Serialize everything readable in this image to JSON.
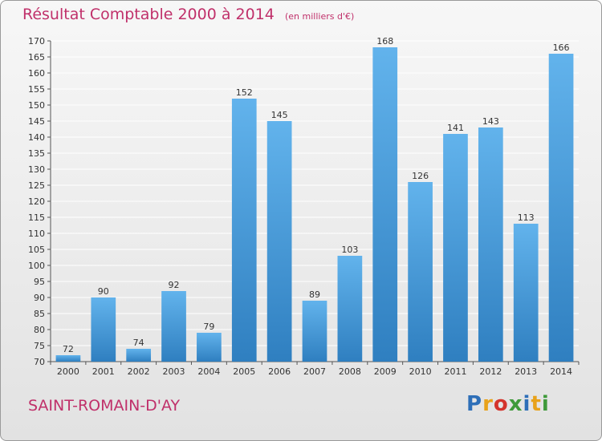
{
  "header": {
    "title": "Résultat Comptable 2000 à 2014",
    "subtitle": "(en milliers d'€)"
  },
  "footer": {
    "commune": "SAINT-ROMAIN-D'AY",
    "logo": "Proxiti"
  },
  "colors": {
    "title": "#c0306a",
    "bar_top": "#62b3ec",
    "bar_bottom": "#2f7fc0",
    "grid": "#ffffff",
    "axis": "#555555"
  },
  "chart_data": {
    "type": "bar",
    "categories": [
      "2000",
      "2001",
      "2002",
      "2003",
      "2004",
      "2005",
      "2006",
      "2007",
      "2008",
      "2009",
      "2010",
      "2011",
      "2012",
      "2013",
      "2014"
    ],
    "values": [
      72,
      90,
      74,
      92,
      79,
      152,
      145,
      89,
      103,
      168,
      126,
      141,
      143,
      113,
      166
    ],
    "title": "Résultat Comptable 2000 à 2014",
    "subtitle": "(en milliers d'€)",
    "xlabel": "",
    "ylabel": "",
    "ylim": [
      70,
      170
    ],
    "ytick_step": 5,
    "grid": true,
    "data_labels": true
  }
}
